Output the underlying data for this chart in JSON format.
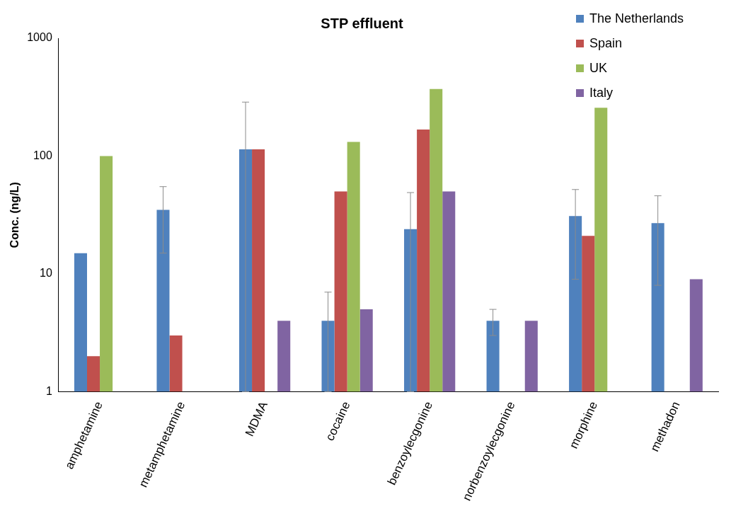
{
  "chart_data": {
    "type": "bar",
    "title": "STP effluent",
    "ylabel": "Conc. (ng/L)",
    "log": true,
    "ylim": [
      1,
      1000
    ],
    "yticks": [
      1,
      10,
      100,
      1000
    ],
    "grid": false,
    "legend": "top right",
    "categories": [
      "amphetamine",
      "metamphetamine",
      "MDMA",
      "cocaine",
      "benzoylecgonine",
      "norbenzoylecgonine",
      "morphine",
      "methadon"
    ],
    "series": [
      {
        "name": "The Netherlands",
        "color": "#4f81bd",
        "values": [
          15,
          35,
          114,
          4,
          24,
          4,
          31,
          27
        ],
        "errors": [
          null,
          [
            15,
            55
          ],
          [
            1,
            287
          ],
          [
            1,
            7
          ],
          [
            1,
            49
          ],
          [
            3,
            5
          ],
          [
            9,
            52
          ],
          [
            8,
            46
          ]
        ]
      },
      {
        "name": "Spain",
        "color": "#c0504d",
        "values": [
          2,
          3,
          114,
          50,
          168,
          null,
          21,
          null
        ]
      },
      {
        "name": "UK",
        "color": "#9bbb59",
        "values": [
          100,
          null,
          null,
          132,
          371,
          null,
          257,
          null
        ]
      },
      {
        "name": "Italy",
        "color": "#8064a2",
        "values": [
          null,
          null,
          4,
          5,
          50,
          4,
          null,
          9
        ]
      }
    ]
  }
}
